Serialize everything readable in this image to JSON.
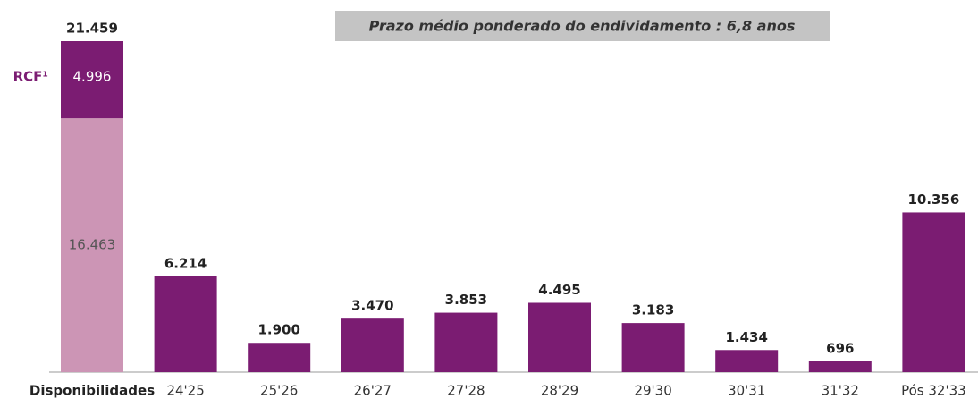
{
  "chart_data": {
    "type": "stacked-bar",
    "title": "Prazo médio ponderado do endividamento : 6,8 anos",
    "categories": [
      "Disponibilidades",
      "24'25",
      "25'26",
      "26'27",
      "27'28",
      "28'29",
      "29'30",
      "30'31",
      "31'32",
      "Pós 32'33"
    ],
    "series": [
      {
        "color": "#cc95b5",
        "values": [
          16463,
          null,
          null,
          null,
          null,
          null,
          null,
          null,
          null,
          null
        ],
        "value_labels": [
          "16.463",
          null,
          null,
          null,
          null,
          null,
          null,
          null,
          null,
          null
        ]
      },
      {
        "name": "RCF¹",
        "color": "#7b1c72",
        "values": [
          4996,
          6214,
          1900,
          3470,
          3853,
          4495,
          3183,
          1434,
          696,
          10356
        ],
        "value_labels": [
          "4.996",
          "6.214",
          "1.900",
          "3.470",
          "3.853",
          "4.495",
          "3.183",
          "1.434",
          "696",
          "10.356"
        ]
      }
    ],
    "stack_total_label": "21.459"
  }
}
